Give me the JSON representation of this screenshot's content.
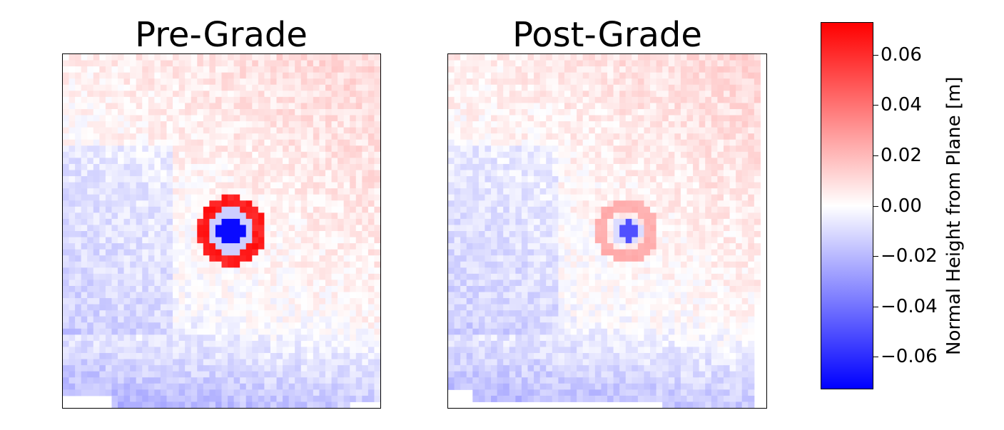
{
  "chart_data": [
    {
      "type": "heatmap",
      "title": "Pre-Grade",
      "features": [
        {
          "kind": "pit",
          "x": 0.53,
          "y": 0.5,
          "radius": 0.045,
          "value": -0.07
        },
        {
          "kind": "rim",
          "x": 0.53,
          "y": 0.5,
          "radius": 0.09,
          "value": 0.07
        }
      ],
      "description_values": {
        "center": -0.07,
        "rim": 0.07,
        "background_range": [
          -0.03,
          0.015
        ]
      }
    },
    {
      "type": "heatmap",
      "title": "Post-Grade",
      "features": [
        {
          "kind": "pit",
          "x": 0.56,
          "y": 0.5,
          "radius": 0.03,
          "value": -0.05
        },
        {
          "kind": "rim",
          "x": 0.56,
          "y": 0.5,
          "radius": 0.08,
          "value": 0.025
        }
      ],
      "description_values": {
        "center": -0.05,
        "rim": 0.025,
        "background_range": [
          -0.03,
          0.015
        ]
      }
    }
  ],
  "colorbar": {
    "label": "Normal Height from Plane [m]",
    "vmin": -0.073,
    "vmax": 0.073,
    "ticks": [
      0.06,
      0.04,
      0.02,
      0.0,
      -0.02,
      -0.04,
      -0.06
    ],
    "tick_labels": [
      "0.06",
      "0.04",
      "0.02",
      "0.00",
      "−0.02",
      "−0.04",
      "−0.06"
    ],
    "cmap": "bwr",
    "colors": {
      "low": "#0000ff",
      "mid": "#ffffff",
      "high": "#ff0000"
    }
  }
}
